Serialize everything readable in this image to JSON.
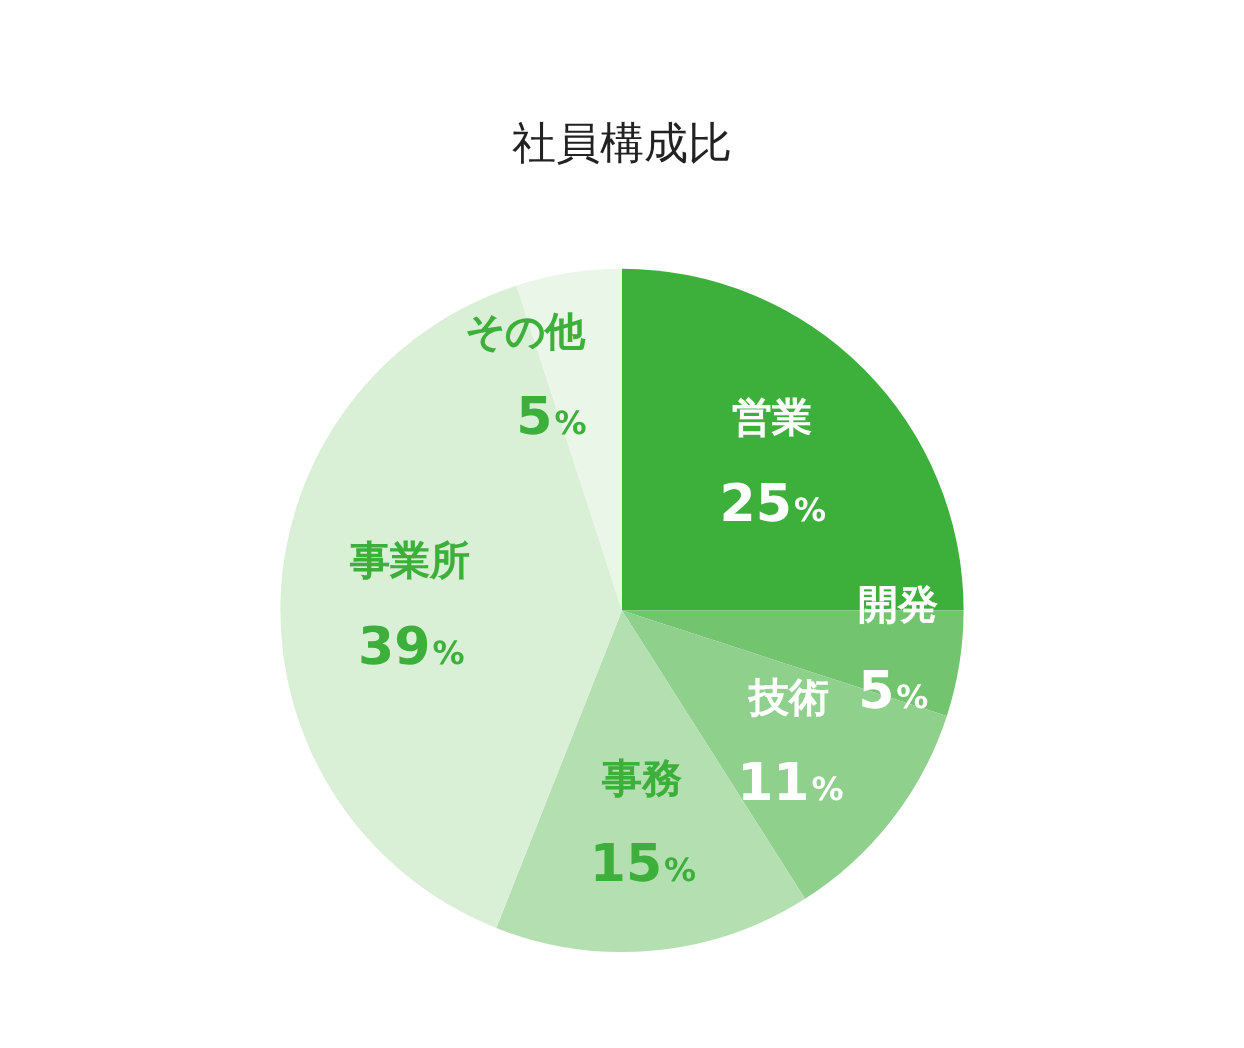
{
  "chart_data": {
    "type": "pie",
    "title": "社員構成比",
    "categories": [
      "営業",
      "開発",
      "技術",
      "事務",
      "事業所",
      "その他"
    ],
    "values": [
      25,
      5,
      11,
      15,
      39,
      5
    ],
    "value_labels": [
      "25%",
      "5%",
      "11%",
      "15%",
      "39%",
      "5%"
    ],
    "colors": [
      "#3daf3b",
      "#72c46f",
      "#8fd08c",
      "#b4e0b1",
      "#d9efd6",
      "#eaf6e8"
    ],
    "legend": false
  }
}
